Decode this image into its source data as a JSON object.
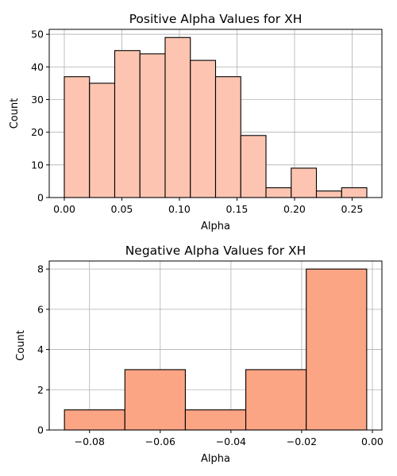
{
  "chart_data": [
    {
      "type": "bar",
      "title": "Positive Alpha Values for XH",
      "xlabel": "Alpha",
      "ylabel": "Count",
      "color": "#fdc5b1",
      "bins": [
        {
          "start": 0.0,
          "end": 0.0219,
          "count": 37
        },
        {
          "start": 0.0219,
          "end": 0.0438,
          "count": 35
        },
        {
          "start": 0.0438,
          "end": 0.0657,
          "count": 45
        },
        {
          "start": 0.0657,
          "end": 0.0876,
          "count": 44
        },
        {
          "start": 0.0876,
          "end": 0.1095,
          "count": 49
        },
        {
          "start": 0.1095,
          "end": 0.1314,
          "count": 42
        },
        {
          "start": 0.1314,
          "end": 0.1533,
          "count": 37
        },
        {
          "start": 0.1533,
          "end": 0.1752,
          "count": 19
        },
        {
          "start": 0.1752,
          "end": 0.1971,
          "count": 3
        },
        {
          "start": 0.1971,
          "end": 0.219,
          "count": 9
        },
        {
          "start": 0.219,
          "end": 0.2409,
          "count": 2
        },
        {
          "start": 0.2409,
          "end": 0.2628,
          "count": 3
        }
      ],
      "xlim": [
        -0.0131,
        0.2759
      ],
      "ylim": [
        0,
        51.5
      ],
      "xticks": [
        0.0,
        0.05,
        0.1,
        0.15,
        0.2,
        0.25
      ],
      "xtick_labels": [
        "0.00",
        "0.05",
        "0.10",
        "0.15",
        "0.20",
        "0.25"
      ],
      "yticks": [
        0,
        10,
        20,
        30,
        40,
        50
      ],
      "ytick_labels": [
        "0",
        "10",
        "20",
        "30",
        "40",
        "50"
      ],
      "grid": true
    },
    {
      "type": "bar",
      "title": "Negative Alpha Values for XH",
      "xlabel": "Alpha",
      "ylabel": "Count",
      "color": "#fca584",
      "bins": [
        {
          "start": -0.0871,
          "end": -0.07,
          "count": 1
        },
        {
          "start": -0.07,
          "end": -0.0529,
          "count": 3
        },
        {
          "start": -0.0529,
          "end": -0.0358,
          "count": 1
        },
        {
          "start": -0.0358,
          "end": -0.0187,
          "count": 3
        },
        {
          "start": -0.0187,
          "end": -0.0016,
          "count": 8
        }
      ],
      "xlim": [
        -0.0914,
        0.0027
      ],
      "ylim": [
        0,
        8.4
      ],
      "xticks": [
        -0.08,
        -0.06,
        -0.04,
        -0.02,
        0.0
      ],
      "xtick_labels": [
        "−0.08",
        "−0.06",
        "−0.04",
        "−0.02",
        "0.00"
      ],
      "yticks": [
        0,
        2,
        4,
        6,
        8
      ],
      "ytick_labels": [
        "0",
        "2",
        "4",
        "6",
        "8"
      ],
      "grid": true
    }
  ]
}
